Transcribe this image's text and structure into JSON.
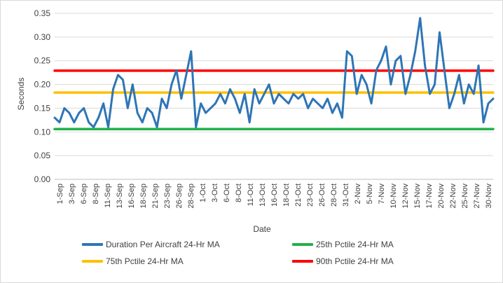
{
  "chart_data": {
    "type": "line",
    "title": "",
    "xlabel": "Date",
    "ylabel": "Seconds",
    "ylim": [
      0,
      0.35
    ],
    "y_ticks": [
      "0.00",
      "0.05",
      "0.10",
      "0.15",
      "0.20",
      "0.25",
      "0.30",
      "0.35"
    ],
    "grid": "horizontal",
    "legend_position": "bottom",
    "x_start": "2023-09-01",
    "x_end": "2023-11-30",
    "x_tick_labels": [
      "1-Sep",
      "3-Sep",
      "6-Sep",
      "8-Sep",
      "11-Sep",
      "13-Sep",
      "16-Sep",
      "18-Sep",
      "21-Sep",
      "23-Sep",
      "26-Sep",
      "28-Sep",
      "1-Oct",
      "3-Oct",
      "6-Oct",
      "8-Oct",
      "11-Oct",
      "13-Oct",
      "16-Oct",
      "18-Oct",
      "21-Oct",
      "23-Oct",
      "26-Oct",
      "28-Oct",
      "31-Oct",
      "2-Nov",
      "5-Nov",
      "7-Nov",
      "10-Nov",
      "12-Nov",
      "15-Nov",
      "17-Nov",
      "20-Nov",
      "22-Nov",
      "25-Nov",
      "27-Nov",
      "30-Nov"
    ],
    "series": [
      {
        "name": "Duration Per Aircraft 24-Hr MA",
        "color": "#2e75b6",
        "points": [
          [
            "2023-09-01",
            0.13
          ],
          [
            "2023-09-02",
            0.12
          ],
          [
            "2023-09-03",
            0.15
          ],
          [
            "2023-09-04",
            0.14
          ],
          [
            "2023-09-05",
            0.12
          ],
          [
            "2023-09-06",
            0.14
          ],
          [
            "2023-09-07",
            0.15
          ],
          [
            "2023-09-08",
            0.12
          ],
          [
            "2023-09-09",
            0.11
          ],
          [
            "2023-09-10",
            0.13
          ],
          [
            "2023-09-11",
            0.16
          ],
          [
            "2023-09-12",
            0.11
          ],
          [
            "2023-09-13",
            0.19
          ],
          [
            "2023-09-14",
            0.22
          ],
          [
            "2023-09-15",
            0.21
          ],
          [
            "2023-09-16",
            0.15
          ],
          [
            "2023-09-17",
            0.2
          ],
          [
            "2023-09-18",
            0.14
          ],
          [
            "2023-09-19",
            0.12
          ],
          [
            "2023-09-20",
            0.15
          ],
          [
            "2023-09-21",
            0.14
          ],
          [
            "2023-09-22",
            0.11
          ],
          [
            "2023-09-23",
            0.17
          ],
          [
            "2023-09-24",
            0.15
          ],
          [
            "2023-09-25",
            0.2
          ],
          [
            "2023-09-26",
            0.23
          ],
          [
            "2023-09-27",
            0.17
          ],
          [
            "2023-09-28",
            0.22
          ],
          [
            "2023-09-29",
            0.27
          ],
          [
            "2023-09-30",
            0.11
          ],
          [
            "2023-10-01",
            0.16
          ],
          [
            "2023-10-02",
            0.14
          ],
          [
            "2023-10-03",
            0.15
          ],
          [
            "2023-10-04",
            0.16
          ],
          [
            "2023-10-05",
            0.18
          ],
          [
            "2023-10-06",
            0.16
          ],
          [
            "2023-10-07",
            0.19
          ],
          [
            "2023-10-08",
            0.17
          ],
          [
            "2023-10-09",
            0.14
          ],
          [
            "2023-10-10",
            0.18
          ],
          [
            "2023-10-11",
            0.12
          ],
          [
            "2023-10-12",
            0.19
          ],
          [
            "2023-10-13",
            0.16
          ],
          [
            "2023-10-14",
            0.18
          ],
          [
            "2023-10-15",
            0.2
          ],
          [
            "2023-10-16",
            0.16
          ],
          [
            "2023-10-17",
            0.18
          ],
          [
            "2023-10-18",
            0.17
          ],
          [
            "2023-10-19",
            0.16
          ],
          [
            "2023-10-20",
            0.18
          ],
          [
            "2023-10-21",
            0.17
          ],
          [
            "2023-10-22",
            0.18
          ],
          [
            "2023-10-23",
            0.15
          ],
          [
            "2023-10-24",
            0.17
          ],
          [
            "2023-10-25",
            0.16
          ],
          [
            "2023-10-26",
            0.15
          ],
          [
            "2023-10-27",
            0.17
          ],
          [
            "2023-10-28",
            0.14
          ],
          [
            "2023-10-29",
            0.16
          ],
          [
            "2023-10-30",
            0.13
          ],
          [
            "2023-10-31",
            0.27
          ],
          [
            "2023-11-01",
            0.26
          ],
          [
            "2023-11-02",
            0.18
          ],
          [
            "2023-11-03",
            0.22
          ],
          [
            "2023-11-04",
            0.2
          ],
          [
            "2023-11-05",
            0.16
          ],
          [
            "2023-11-06",
            0.23
          ],
          [
            "2023-11-07",
            0.25
          ],
          [
            "2023-11-08",
            0.28
          ],
          [
            "2023-11-09",
            0.2
          ],
          [
            "2023-11-10",
            0.25
          ],
          [
            "2023-11-11",
            0.26
          ],
          [
            "2023-11-12",
            0.18
          ],
          [
            "2023-11-13",
            0.22
          ],
          [
            "2023-11-14",
            0.27
          ],
          [
            "2023-11-15",
            0.34
          ],
          [
            "2023-11-16",
            0.24
          ],
          [
            "2023-11-17",
            0.18
          ],
          [
            "2023-11-18",
            0.2
          ],
          [
            "2023-11-19",
            0.31
          ],
          [
            "2023-11-20",
            0.23
          ],
          [
            "2023-11-21",
            0.15
          ],
          [
            "2023-11-22",
            0.18
          ],
          [
            "2023-11-23",
            0.22
          ],
          [
            "2023-11-24",
            0.16
          ],
          [
            "2023-11-25",
            0.2
          ],
          [
            "2023-11-26",
            0.18
          ],
          [
            "2023-11-27",
            0.24
          ],
          [
            "2023-11-28",
            0.12
          ],
          [
            "2023-11-29",
            0.16
          ],
          [
            "2023-11-30",
            0.17
          ]
        ]
      },
      {
        "name": "25th Pctile 24-Hr MA",
        "color": "#22b14c",
        "points": [
          [
            "2023-09-01",
            0.106
          ],
          [
            "2023-11-30",
            0.106
          ]
        ]
      },
      {
        "name": "75th Pctile 24-Hr MA",
        "color": "#ffc000",
        "points": [
          [
            "2023-09-01",
            0.183
          ],
          [
            "2023-11-30",
            0.183
          ]
        ]
      },
      {
        "name": "90th Pctile 24-Hr MA",
        "color": "#ff0000",
        "points": [
          [
            "2023-09-01",
            0.229
          ],
          [
            "2023-11-30",
            0.229
          ]
        ]
      }
    ],
    "legend": [
      {
        "label": "Duration Per Aircraft 24-Hr MA",
        "color": "#2e75b6"
      },
      {
        "label": "25th Pctile 24-Hr MA",
        "color": "#22b14c"
      },
      {
        "label": "75th Pctile 24-Hr MA",
        "color": "#ffc000"
      },
      {
        "label": "90th Pctile 24-Hr MA",
        "color": "#ff0000"
      }
    ]
  }
}
